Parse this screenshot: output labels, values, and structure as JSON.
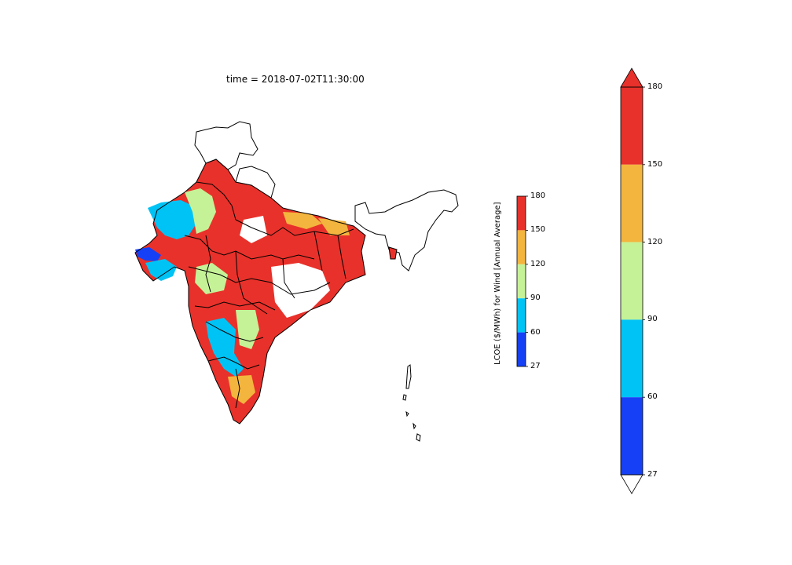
{
  "title": "time = 2018-07-02T11:30:00",
  "colorbar": {
    "label": "LCOE ($/MWh)  for Wind [Annual Average]",
    "ticks": [
      "27",
      "60",
      "90",
      "120",
      "150",
      "180"
    ],
    "bins": [
      {
        "from": 27,
        "to": 60,
        "color": "#1640f5"
      },
      {
        "from": 60,
        "to": 90,
        "color": "#00c3f5"
      },
      {
        "from": 90,
        "to": 120,
        "color": "#c5f297"
      },
      {
        "from": 120,
        "to": 150,
        "color": "#f3b53e"
      },
      {
        "from": 150,
        "to": 180,
        "color": "#e8312a"
      }
    ],
    "extend": "both"
  },
  "colors": {
    "outline": "#000000",
    "background": "#ffffff"
  }
}
